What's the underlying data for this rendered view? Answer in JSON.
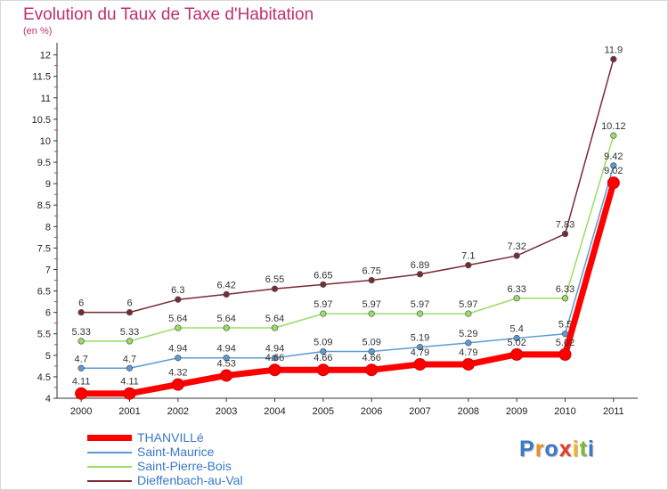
{
  "title": "Evolution du Taux de Taxe d'Habitation",
  "subtitle": "(en %)",
  "chart_data": {
    "type": "line",
    "x": [
      "2000",
      "2001",
      "2002",
      "2003",
      "2004",
      "2005",
      "2006",
      "2007",
      "2008",
      "2009",
      "2010",
      "2011"
    ],
    "ylim": [
      4,
      12.2
    ],
    "yticks": [
      "4",
      "4.5",
      "5",
      "5.5",
      "6",
      "6.5",
      "7",
      "7.5",
      "8",
      "8.5",
      "9",
      "9.5",
      "10",
      "10.5",
      "11",
      "11.5",
      "12"
    ],
    "series": [
      {
        "name": "THANVILLé",
        "color": "#ff0000",
        "values": [
          4.11,
          4.11,
          4.32,
          4.53,
          4.66,
          4.66,
          4.66,
          4.79,
          4.79,
          5.02,
          5.02,
          9.02
        ],
        "labels": [
          "4.11",
          "4.11",
          "4.32",
          "4.53",
          "4.66",
          "4.66",
          "4.66",
          "4.79",
          "4.79",
          "5.02",
          "5.02",
          "9.02"
        ]
      },
      {
        "name": "Saint-Maurice",
        "color": "#5b9bd5",
        "values": [
          4.7,
          4.7,
          4.94,
          4.94,
          4.94,
          5.09,
          5.09,
          5.19,
          5.29,
          5.4,
          5.5,
          9.42
        ],
        "labels": [
          "4.7",
          "4.7",
          "4.94",
          "4.94",
          "4.94",
          "5.09",
          "5.09",
          "5.19",
          "5.29",
          "5.4",
          "5.5",
          "9.42"
        ]
      },
      {
        "name": "Saint-Pierre-Bois",
        "color": "#99dd66",
        "values": [
          5.33,
          5.33,
          5.64,
          5.64,
          5.64,
          5.97,
          5.97,
          5.97,
          5.97,
          6.33,
          6.33,
          10.12
        ],
        "labels": [
          "5.33",
          "5.33",
          "5.64",
          "5.64",
          "5.64",
          "5.97",
          "5.97",
          "5.97",
          "5.97",
          "6.33",
          "6.33",
          "10.12"
        ]
      },
      {
        "name": "Dieffenbach-au-Val",
        "color": "#7a2a35",
        "values": [
          6,
          6,
          6.3,
          6.42,
          6.55,
          6.65,
          6.75,
          6.89,
          7.1,
          7.32,
          7.83,
          11.9
        ],
        "labels": [
          "6",
          "6",
          "6.3",
          "6.42",
          "6.55",
          "6.65",
          "6.75",
          "6.89",
          "7.1",
          "7.32",
          "7.83",
          "11.9"
        ]
      }
    ],
    "grid": false,
    "legend_position": "bottom-left"
  },
  "logo": {
    "letters": [
      "P",
      "r",
      "o",
      "x",
      "i",
      "t",
      "i"
    ],
    "colors": [
      "#3a78c8",
      "#f28c1e",
      "#3a78c8",
      "#e63a2a",
      "#f2b21e",
      "#7ab82e",
      "#3a78c8"
    ]
  }
}
